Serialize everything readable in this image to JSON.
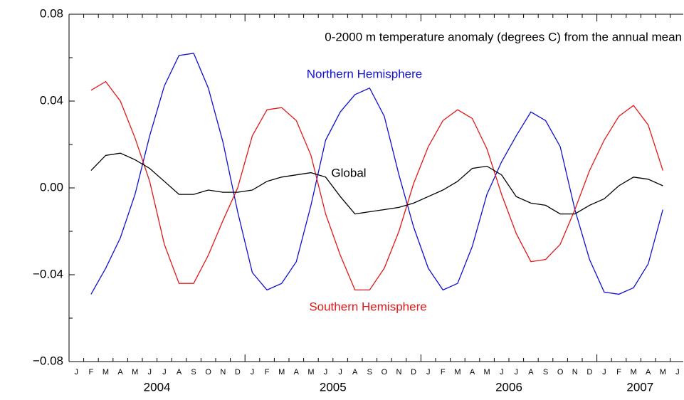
{
  "chart_data": {
    "type": "line",
    "title": "0-2000 m temperature anomaly (degrees C) from the annual mean",
    "month_labels": [
      "J",
      "F",
      "M",
      "A",
      "M",
      "J",
      "J",
      "A",
      "S",
      "O",
      "N",
      "D",
      "J",
      "F",
      "M",
      "A",
      "M",
      "J",
      "J",
      "A",
      "S",
      "O",
      "N",
      "D",
      "J",
      "F",
      "M",
      "A",
      "M",
      "J",
      "J",
      "A",
      "S",
      "O",
      "N",
      "D",
      "J",
      "F",
      "M",
      "A",
      "M",
      "J"
    ],
    "year_labels": [
      "2004",
      "2005",
      "2006",
      "2007"
    ],
    "x": [
      "2004-02",
      "2004-03",
      "2004-04",
      "2004-05",
      "2004-06",
      "2004-07",
      "2004-08",
      "2004-09",
      "2004-10",
      "2004-11",
      "2004-12",
      "2005-01",
      "2005-02",
      "2005-03",
      "2005-04",
      "2005-05",
      "2005-06",
      "2005-07",
      "2005-08",
      "2005-09",
      "2005-10",
      "2005-11",
      "2005-12",
      "2006-01",
      "2006-02",
      "2006-03",
      "2006-04",
      "2006-05",
      "2006-06",
      "2006-07",
      "2006-08",
      "2006-09",
      "2006-10",
      "2006-11",
      "2006-12",
      "2007-01",
      "2007-02",
      "2007-03",
      "2007-04",
      "2007-05"
    ],
    "series": [
      {
        "name": "Northern Hemisphere",
        "color": "#1010d0",
        "values": [
          -0.049,
          -0.037,
          -0.023,
          -0.003,
          0.024,
          0.047,
          0.061,
          0.062,
          0.046,
          0.021,
          -0.011,
          -0.039,
          -0.047,
          -0.044,
          -0.034,
          -0.008,
          0.022,
          0.035,
          0.043,
          0.046,
          0.033,
          0.006,
          -0.018,
          -0.037,
          -0.047,
          -0.044,
          -0.027,
          -0.003,
          0.012,
          0.024,
          0.035,
          0.031,
          0.019,
          -0.01,
          -0.033,
          -0.048,
          -0.049,
          -0.046,
          -0.035,
          -0.01
        ]
      },
      {
        "name": "Southern Hemisphere",
        "color": "#e01818",
        "values": [
          0.045,
          0.049,
          0.04,
          0.023,
          0.003,
          -0.026,
          -0.044,
          -0.044,
          -0.031,
          -0.015,
          0.0,
          0.024,
          0.036,
          0.037,
          0.031,
          0.015,
          -0.012,
          -0.031,
          -0.047,
          -0.047,
          -0.037,
          -0.02,
          0.002,
          0.019,
          0.031,
          0.036,
          0.032,
          0.018,
          -0.003,
          -0.021,
          -0.034,
          -0.033,
          -0.026,
          -0.01,
          0.008,
          0.022,
          0.033,
          0.038,
          0.029,
          0.008
        ]
      },
      {
        "name": "Global",
        "color": "#000000",
        "values": [
          0.008,
          0.015,
          0.016,
          0.013,
          0.009,
          0.003,
          -0.003,
          -0.003,
          -0.001,
          -0.002,
          -0.002,
          -0.001,
          0.003,
          0.005,
          0.006,
          0.007,
          0.005,
          -0.004,
          -0.012,
          -0.011,
          -0.01,
          -0.009,
          -0.007,
          -0.004,
          -0.001,
          0.003,
          0.009,
          0.01,
          0.006,
          -0.004,
          -0.007,
          -0.008,
          -0.012,
          -0.012,
          -0.008,
          -0.005,
          0.001,
          0.005,
          0.004,
          0.001
        ]
      }
    ],
    "ylim": [
      -0.08,
      0.08
    ],
    "yticks": [
      {
        "value": -0.08,
        "label": "−0.08"
      },
      {
        "value": -0.04,
        "label": "−0.04"
      },
      {
        "value": 0,
        "label": "0.00"
      },
      {
        "value": 0.04,
        "label": "0.04"
      },
      {
        "value": 0.08,
        "label": "0.08"
      }
    ],
    "minor_yticks": [
      -0.06,
      -0.02,
      0.02,
      0.06
    ]
  }
}
